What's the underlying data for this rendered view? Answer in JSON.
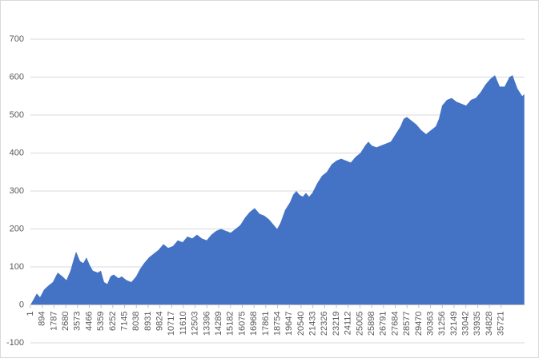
{
  "chart_data": {
    "type": "area",
    "color": "#4472c4",
    "grid": true,
    "xlim": [
      1,
      37500
    ],
    "xticks": [
      1,
      894,
      1787,
      2680,
      3573,
      4466,
      5359,
      6252,
      7145,
      8038,
      8931,
      9824,
      10717,
      11610,
      12503,
      13396,
      14289,
      15182,
      16075,
      16968,
      17861,
      18754,
      19647,
      20540,
      21433,
      22326,
      23219,
      24112,
      25005,
      25898,
      26791,
      27684,
      28577,
      29470,
      30363,
      31256,
      32149,
      33042,
      33935,
      34828,
      35721
    ],
    "ylim": [
      -100,
      740
    ],
    "yticks": [
      -100,
      0,
      100,
      200,
      300,
      400,
      500,
      600,
      700
    ],
    "x": [
      1,
      243,
      486,
      729,
      1033,
      1337,
      1702,
      2066,
      2431,
      2735,
      3039,
      3282,
      3464,
      3768,
      4011,
      4254,
      4497,
      4740,
      5105,
      5349,
      5592,
      5835,
      6078,
      6321,
      6686,
      6929,
      7294,
      7658,
      8023,
      8327,
      8631,
      8995,
      9360,
      9725,
      10089,
      10454,
      10819,
      11183,
      11548,
      11913,
      12277,
      12642,
      13007,
      13372,
      13736,
      14101,
      14466,
      14830,
      15195,
      15560,
      15924,
      16289,
      16654,
      17018,
      17383,
      17748,
      18112,
      18477,
      18720,
      18963,
      19328,
      19693,
      19936,
      20179,
      20422,
      20665,
      20908,
      21151,
      21395,
      21759,
      22124,
      22489,
      22853,
      23218,
      23583,
      23947,
      24312,
      24677,
      25041,
      25406,
      25649,
      25892,
      26257,
      26622,
      26986,
      27351,
      27716,
      28080,
      28323,
      28567,
      28931,
      29296,
      29661,
      30025,
      30390,
      30755,
      30998,
      31241,
      31606,
      31970,
      32335,
      32700,
      33064,
      33429,
      33794,
      34158,
      34523,
      34888,
      35252,
      35617,
      35982,
      36346,
      36589,
      36954,
      37319,
      37480
    ],
    "values": [
      0,
      15,
      30,
      20,
      40,
      50,
      60,
      85,
      75,
      65,
      90,
      120,
      140,
      115,
      110,
      125,
      105,
      90,
      85,
      90,
      60,
      55,
      75,
      80,
      70,
      75,
      65,
      60,
      75,
      95,
      110,
      125,
      135,
      145,
      160,
      150,
      155,
      170,
      165,
      180,
      175,
      185,
      175,
      170,
      185,
      195,
      200,
      195,
      190,
      200,
      210,
      230,
      245,
      255,
      240,
      235,
      225,
      210,
      200,
      215,
      250,
      270,
      290,
      300,
      290,
      285,
      295,
      285,
      295,
      320,
      340,
      350,
      370,
      380,
      385,
      380,
      375,
      390,
      400,
      420,
      430,
      420,
      415,
      420,
      425,
      430,
      450,
      470,
      490,
      495,
      485,
      475,
      460,
      450,
      460,
      470,
      490,
      525,
      540,
      545,
      535,
      530,
      525,
      540,
      545,
      560,
      580,
      595,
      605,
      575,
      575,
      600,
      605,
      570,
      550,
      555
    ]
  }
}
